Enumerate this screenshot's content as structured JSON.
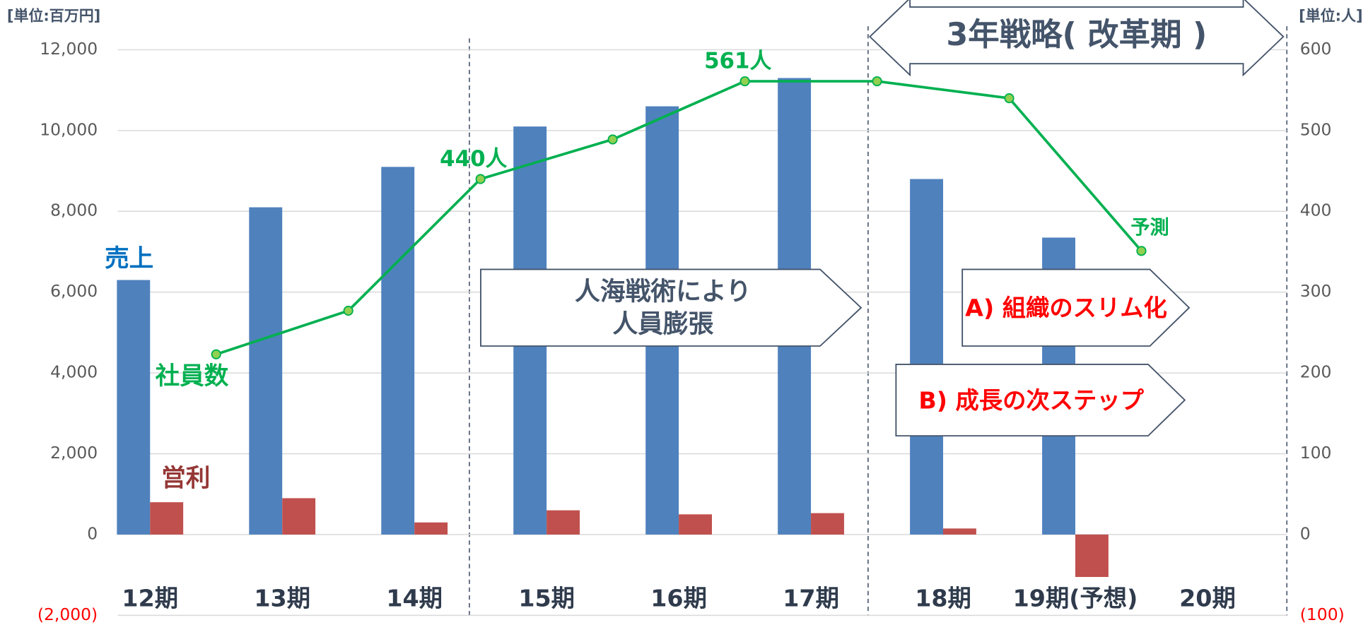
{
  "chart_data": {
    "type": "bar",
    "categories": [
      "12期",
      "13期",
      "14期",
      "15期",
      "16期",
      "17期",
      "18期",
      "19期(予想)",
      "20期"
    ],
    "series": [
      {
        "name": "売上",
        "color": "#4f81bd",
        "values": [
          6300,
          8100,
          9100,
          10100,
          10600,
          11300,
          8800,
          7350,
          null
        ]
      },
      {
        "name": "営利",
        "color": "#c0504d",
        "values": [
          800,
          900,
          300,
          600,
          500,
          530,
          150,
          -1050,
          null
        ]
      },
      {
        "name": "社員数",
        "type": "line",
        "axis": "y2",
        "color": "#00b050",
        "marker_color": "#92d050",
        "values": [
          223,
          277,
          440,
          489,
          561,
          561,
          540,
          351,
          null
        ],
        "value_labels": [
          null,
          null,
          "440人",
          null,
          "561人",
          null,
          null,
          null,
          null
        ]
      }
    ],
    "ylim": [
      -2000,
      12000
    ],
    "yticks": [
      {
        "value": -2000,
        "label": "(2,000)"
      },
      0,
      {
        "value": 2000,
        "label": "2,000"
      },
      {
        "value": 4000,
        "label": "4,000"
      },
      {
        "value": 6000,
        "label": "6,000"
      },
      {
        "value": 8000,
        "label": "8,000"
      },
      {
        "value": 10000,
        "label": "10,000"
      },
      {
        "value": 12000,
        "label": "12,000"
      }
    ],
    "y2lim": [
      -100,
      600
    ],
    "y2ticks": [
      {
        "value": -100,
        "label": "(100)"
      },
      0,
      100,
      200,
      300,
      400,
      500,
      600
    ],
    "y_unit": "[単位:百万円]",
    "y2_unit": "[単位:人]",
    "grid": true,
    "annotations": [
      "予測",
      "3年戦略( 改革期 )",
      "人海戦術により",
      "人員膨張",
      "A) 組織のスリム化",
      "B) 成長の次ステップ"
    ]
  }
}
